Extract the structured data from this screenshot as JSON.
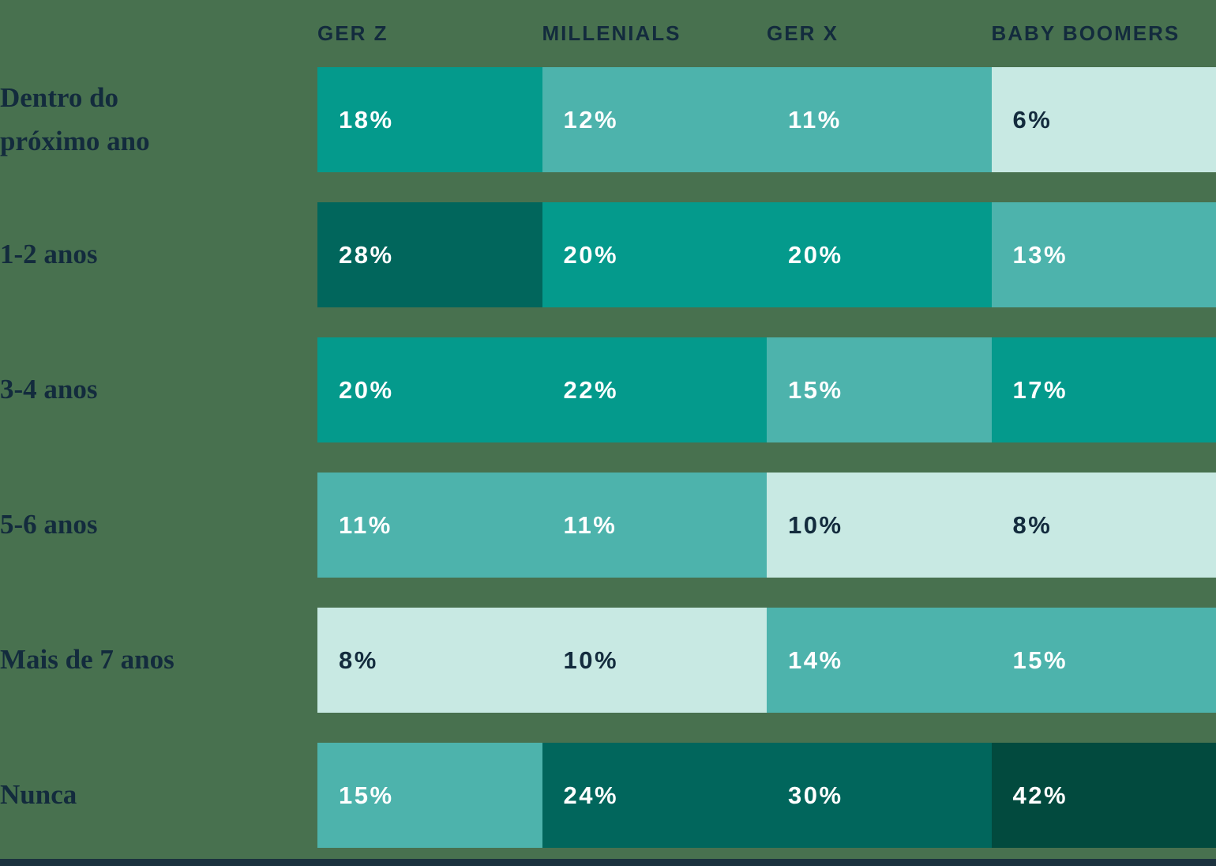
{
  "chart_data": {
    "type": "heatmap",
    "title": "",
    "columns": [
      "GER Z",
      "MILLENIALS",
      "GER X",
      "BABY BOOMERS"
    ],
    "row_categories": [
      "Dentro do próximo ano",
      "1-2 anos",
      "3-4 anos",
      "5-6 anos",
      "Mais de 7 anos",
      "Nunca"
    ],
    "values_percent": [
      [
        18,
        12,
        11,
        6
      ],
      [
        28,
        20,
        20,
        13
      ],
      [
        20,
        22,
        15,
        17
      ],
      [
        11,
        11,
        10,
        8
      ],
      [
        8,
        10,
        14,
        15
      ],
      [
        15,
        24,
        30,
        42
      ]
    ],
    "unit": "%",
    "legend_position": "none",
    "grid": false
  },
  "colors": {
    "background": "#48714F",
    "heading_text": "#132B3D",
    "label_text": "#132B3D",
    "bottom_bar": "#1B323E",
    "palette": {
      "darkest": {
        "bg": "#024A3E",
        "text": "#FFFFFF"
      },
      "dark": {
        "bg": "#01665C",
        "text": "#FFFFFF"
      },
      "teal": {
        "bg": "#049A8C",
        "text": "#FFFFFF"
      },
      "medium": {
        "bg": "#4DB3AC",
        "text": "#FFFFFF"
      },
      "pale": {
        "bg": "#C8E9E3",
        "text": "#132B3D"
      }
    }
  },
  "rows": [
    {
      "label": "Dentro do próximo ano",
      "lines": [
        "Dentro do",
        "próximo ano"
      ],
      "cells": [
        {
          "text": "18%",
          "tone": "teal"
        },
        {
          "text": "12%",
          "tone": "medium"
        },
        {
          "text": "11%",
          "tone": "medium"
        },
        {
          "text": "6%",
          "tone": "pale"
        }
      ]
    },
    {
      "label": "1-2 anos",
      "lines": [
        "1-2 anos"
      ],
      "cells": [
        {
          "text": "28%",
          "tone": "dark"
        },
        {
          "text": "20%",
          "tone": "teal"
        },
        {
          "text": "20%",
          "tone": "teal"
        },
        {
          "text": "13%",
          "tone": "medium"
        }
      ]
    },
    {
      "label": "3-4 anos",
      "lines": [
        "3-4 anos"
      ],
      "cells": [
        {
          "text": "20%",
          "tone": "teal"
        },
        {
          "text": "22%",
          "tone": "teal"
        },
        {
          "text": "15%",
          "tone": "medium"
        },
        {
          "text": "17%",
          "tone": "teal"
        }
      ]
    },
    {
      "label": "5-6 anos",
      "lines": [
        "5-6 anos"
      ],
      "cells": [
        {
          "text": "11%",
          "tone": "medium"
        },
        {
          "text": "11%",
          "tone": "medium"
        },
        {
          "text": "10%",
          "tone": "pale"
        },
        {
          "text": "8%",
          "tone": "pale"
        }
      ]
    },
    {
      "label": "Mais de 7 anos",
      "lines": [
        "Mais de 7 anos"
      ],
      "cells": [
        {
          "text": "8%",
          "tone": "pale"
        },
        {
          "text": "10%",
          "tone": "pale"
        },
        {
          "text": "14%",
          "tone": "medium"
        },
        {
          "text": "15%",
          "tone": "medium"
        }
      ]
    },
    {
      "label": "Nunca",
      "lines": [
        "Nunca"
      ],
      "cells": [
        {
          "text": "15%",
          "tone": "medium"
        },
        {
          "text": "24%",
          "tone": "dark"
        },
        {
          "text": "30%",
          "tone": "dark"
        },
        {
          "text": "42%",
          "tone": "darkest"
        }
      ]
    }
  ]
}
